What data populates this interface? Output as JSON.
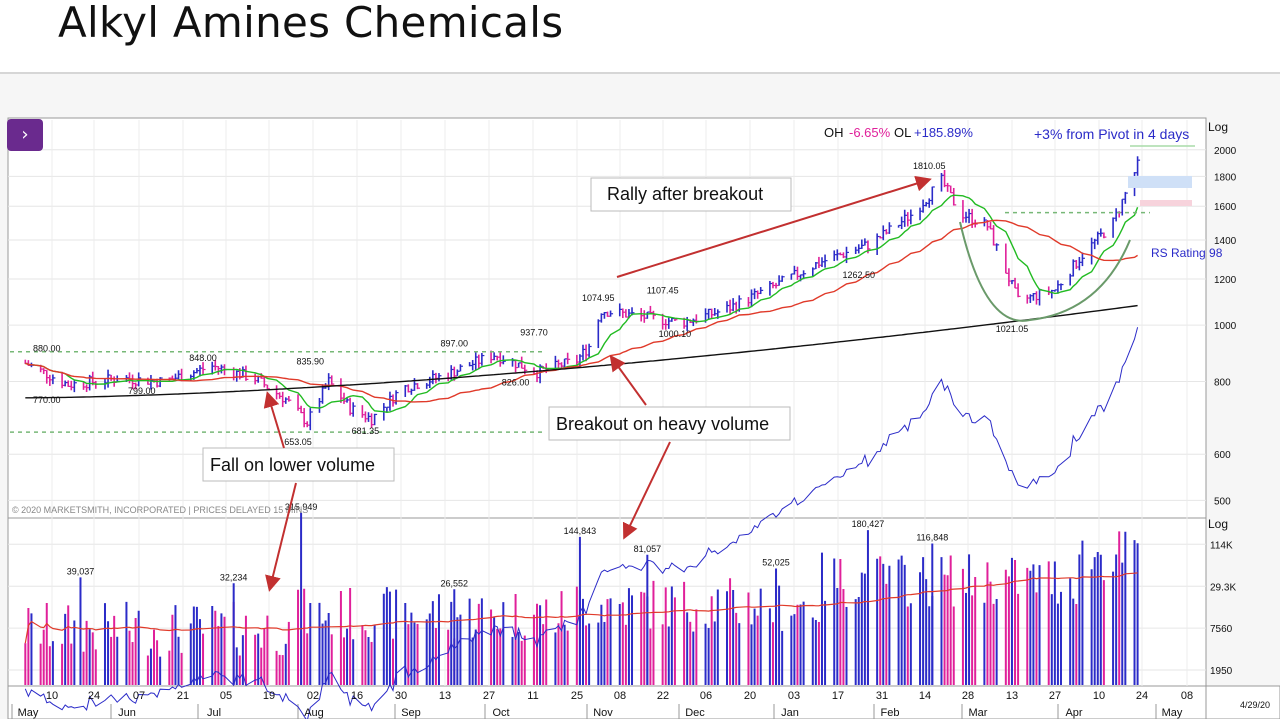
{
  "slide": {
    "title": "Alkyl Amines Chemicals"
  },
  "nav": {
    "icon": "chevron-right-icon",
    "glyph": "›"
  },
  "colors": {
    "up": "#2b2bc8",
    "down": "#e0209a",
    "ma_fast": "#22bb22",
    "ma_mid": "#e03a2a",
    "ma_slow": "#111111",
    "rs": "#2b2bc8",
    "annotation": "#c23030",
    "oh": "#e0209a",
    "ol": "#2b2bc8",
    "pivot_text": "#2b2bc8",
    "vol_avg": "#e03a2a"
  },
  "header": {
    "oh_label": "OH",
    "oh_value": "-6.65%",
    "ol_label": "OL",
    "ol_value": "+185.89%",
    "pivot_note": "+3% from Pivot in 4 days",
    "log_top": "Log",
    "log_bottom": "Log",
    "rs_rating": "RS Rating 98",
    "copyright": "© 2020 MARKETSMITH, INCORPORATED | PRICES DELAYED 15 MINS",
    "date_stamp": "4/29/20"
  },
  "annotations": {
    "rally": "Rally after breakout",
    "breakout": "Breakout on heavy volume",
    "fall": "Fall on lower volume"
  },
  "axes": {
    "price_ticks": [
      "2000",
      "1800",
      "1600",
      "1400",
      "1200",
      "1000",
      "800",
      "600",
      "500"
    ],
    "volume_ticks": [
      "114K",
      "29.3K",
      "7560",
      "1950"
    ],
    "day_ticks": [
      "10",
      "24",
      "07",
      "21",
      "05",
      "19",
      "02",
      "16",
      "30",
      "13",
      "27",
      "11",
      "25",
      "08",
      "22",
      "06",
      "20",
      "03",
      "17",
      "31",
      "14",
      "28",
      "13",
      "27",
      "10",
      "24",
      "08"
    ],
    "month_ticks": [
      "May",
      "Jun",
      "Jul",
      "Aug",
      "Sep",
      "Oct",
      "Nov",
      "Dec",
      "Jan",
      "Feb",
      "Mar",
      "Apr",
      "May"
    ]
  },
  "chart_data": [
    {
      "type": "line",
      "title": "",
      "xlabel": "",
      "ylabel": "",
      "yscale": "log",
      "ylim": [
        470,
        2250
      ],
      "x": [
        "2019-05-01",
        "2019-05-15",
        "2019-06-01",
        "2019-06-15",
        "2019-07-01",
        "2019-07-15",
        "2019-07-25",
        "2019-08-01",
        "2019-08-08",
        "2019-08-15",
        "2019-08-22",
        "2019-09-01",
        "2019-09-15",
        "2019-10-01",
        "2019-10-15",
        "2019-10-28",
        "2019-11-01",
        "2019-11-05",
        "2019-11-15",
        "2019-12-01",
        "2019-12-15",
        "2020-01-01",
        "2020-01-15",
        "2020-02-01",
        "2020-02-15",
        "2020-02-24",
        "2020-03-01",
        "2020-03-10",
        "2020-03-20",
        "2020-04-01",
        "2020-04-10",
        "2020-04-20",
        "2020-04-28"
      ],
      "series": [
        {
          "values": [
            860,
            790,
            810,
            800,
            850,
            810,
            745,
            680,
            800,
            720,
            690,
            780,
            820,
            890,
            830,
            870,
            920,
            1060,
            1040,
            1010,
            1060,
            1170,
            1280,
            1380,
            1560,
            1770,
            1560,
            1480,
            1100,
            1150,
            1320,
            1500,
            1880
          ]
        }
      ],
      "price_labels": [
        {
          "date": "2019-05-08",
          "value": 880.0,
          "text": "880.00"
        },
        {
          "date": "2019-05-08",
          "value": 770.0,
          "text": "770.00"
        },
        {
          "date": "2019-06-08",
          "value": 799.0,
          "text": "799.00"
        },
        {
          "date": "2019-06-28",
          "value": 848.0,
          "text": "848.00"
        },
        {
          "date": "2019-07-29",
          "value": 653.05,
          "text": "653.05"
        },
        {
          "date": "2019-08-02",
          "value": 835.9,
          "text": "835.90"
        },
        {
          "date": "2019-08-20",
          "value": 681.35,
          "text": "681.35"
        },
        {
          "date": "2019-09-18",
          "value": 897.0,
          "text": "897.00"
        },
        {
          "date": "2019-10-08",
          "value": 826.0,
          "text": "826.00"
        },
        {
          "date": "2019-10-14",
          "value": 937.7,
          "text": "937.70"
        },
        {
          "date": "2019-11-04",
          "value": 1074.95,
          "text": "1074.95"
        },
        {
          "date": "2019-11-25",
          "value": 1107.45,
          "text": "1107.45"
        },
        {
          "date": "2019-11-29",
          "value": 1000.1,
          "text": "1000.10"
        },
        {
          "date": "2020-01-28",
          "value": 1262.5,
          "text": "1262.50"
        },
        {
          "date": "2020-02-20",
          "value": 1810.05,
          "text": "1810.05"
        },
        {
          "date": "2020-03-18",
          "value": 1021.05,
          "text": "1021.05"
        }
      ]
    },
    {
      "type": "bar",
      "title": "",
      "yscale": "log",
      "ylim": [
        1200,
        250000
      ],
      "labeled_values": [
        {
          "date": "2019-05-19",
          "value": 39037,
          "text": "39,037"
        },
        {
          "date": "2019-07-08",
          "value": 32234,
          "text": "32,234"
        },
        {
          "date": "2019-07-30",
          "value": 315949,
          "text": "315,949"
        },
        {
          "date": "2019-09-18",
          "value": 26552,
          "text": "26,552"
        },
        {
          "date": "2019-10-29",
          "value": 144843,
          "text": "144,843"
        },
        {
          "date": "2019-11-20",
          "value": 81057,
          "text": "81,057"
        },
        {
          "date": "2020-01-01",
          "value": 52025,
          "text": "52,025"
        },
        {
          "date": "2020-01-31",
          "value": 180427,
          "text": "180,427"
        },
        {
          "date": "2020-02-21",
          "value": 116848,
          "text": "116,848"
        }
      ]
    }
  ]
}
